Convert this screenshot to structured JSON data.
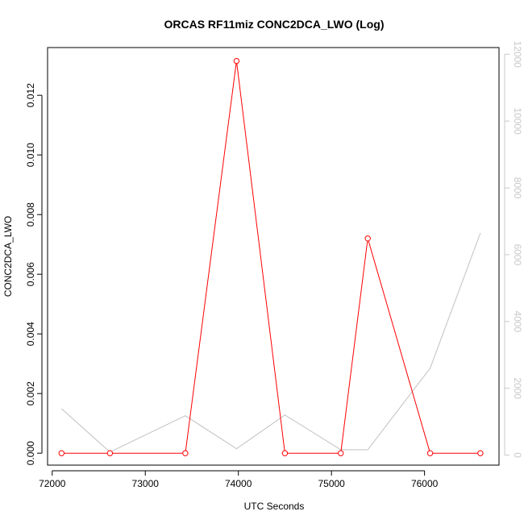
{
  "chart_data": {
    "type": "line",
    "title": "ORCAS RF11miz CONC2DCA_LWO (Log)",
    "xlabel": "UTC Seconds",
    "ylabel": "CONC2DCA_LWO",
    "xlim": [
      71950,
      76800
    ],
    "ylim": [
      -0.0004,
      0.0136
    ],
    "y2lim": [
      -300,
      12200
    ],
    "grid": false,
    "legend": "none",
    "x_ticks": [
      72000,
      73000,
      74000,
      75000,
      76000
    ],
    "x_tick_labels": [
      "72000",
      "73000",
      "74000",
      "75000",
      "76000"
    ],
    "y_ticks": [
      0,
      0.002,
      0.004,
      0.006,
      0.008,
      0.01,
      0.012
    ],
    "y_tick_labels": [
      "0.000",
      "0.002",
      "0.004",
      "0.006",
      "0.008",
      "0.010",
      "0.012"
    ],
    "y2_ticks": [
      0,
      2000,
      4000,
      6000,
      8000,
      10000,
      12000
    ],
    "y2_tick_labels": [
      "0",
      "2000",
      "4000",
      "6000",
      "8000",
      "10000",
      "12000"
    ],
    "series": [
      {
        "color": "#ff0000",
        "axis": "left",
        "markers": true,
        "x": [
          72100,
          72620,
          73430,
          73980,
          74500,
          75100,
          75390,
          76060,
          76600
        ],
        "y": [
          0.0,
          0.0,
          0.0,
          0.01315,
          0.0,
          0.0,
          0.0072,
          0.0,
          0.0
        ]
      },
      {
        "color": "#c0c0c0",
        "axis": "right",
        "markers": false,
        "x": [
          72100,
          72620,
          73430,
          73980,
          74500,
          75100,
          75390,
          76060,
          76600
        ],
        "y": [
          1390,
          90,
          1180,
          190,
          1200,
          160,
          160,
          2600,
          6650
        ]
      }
    ]
  }
}
